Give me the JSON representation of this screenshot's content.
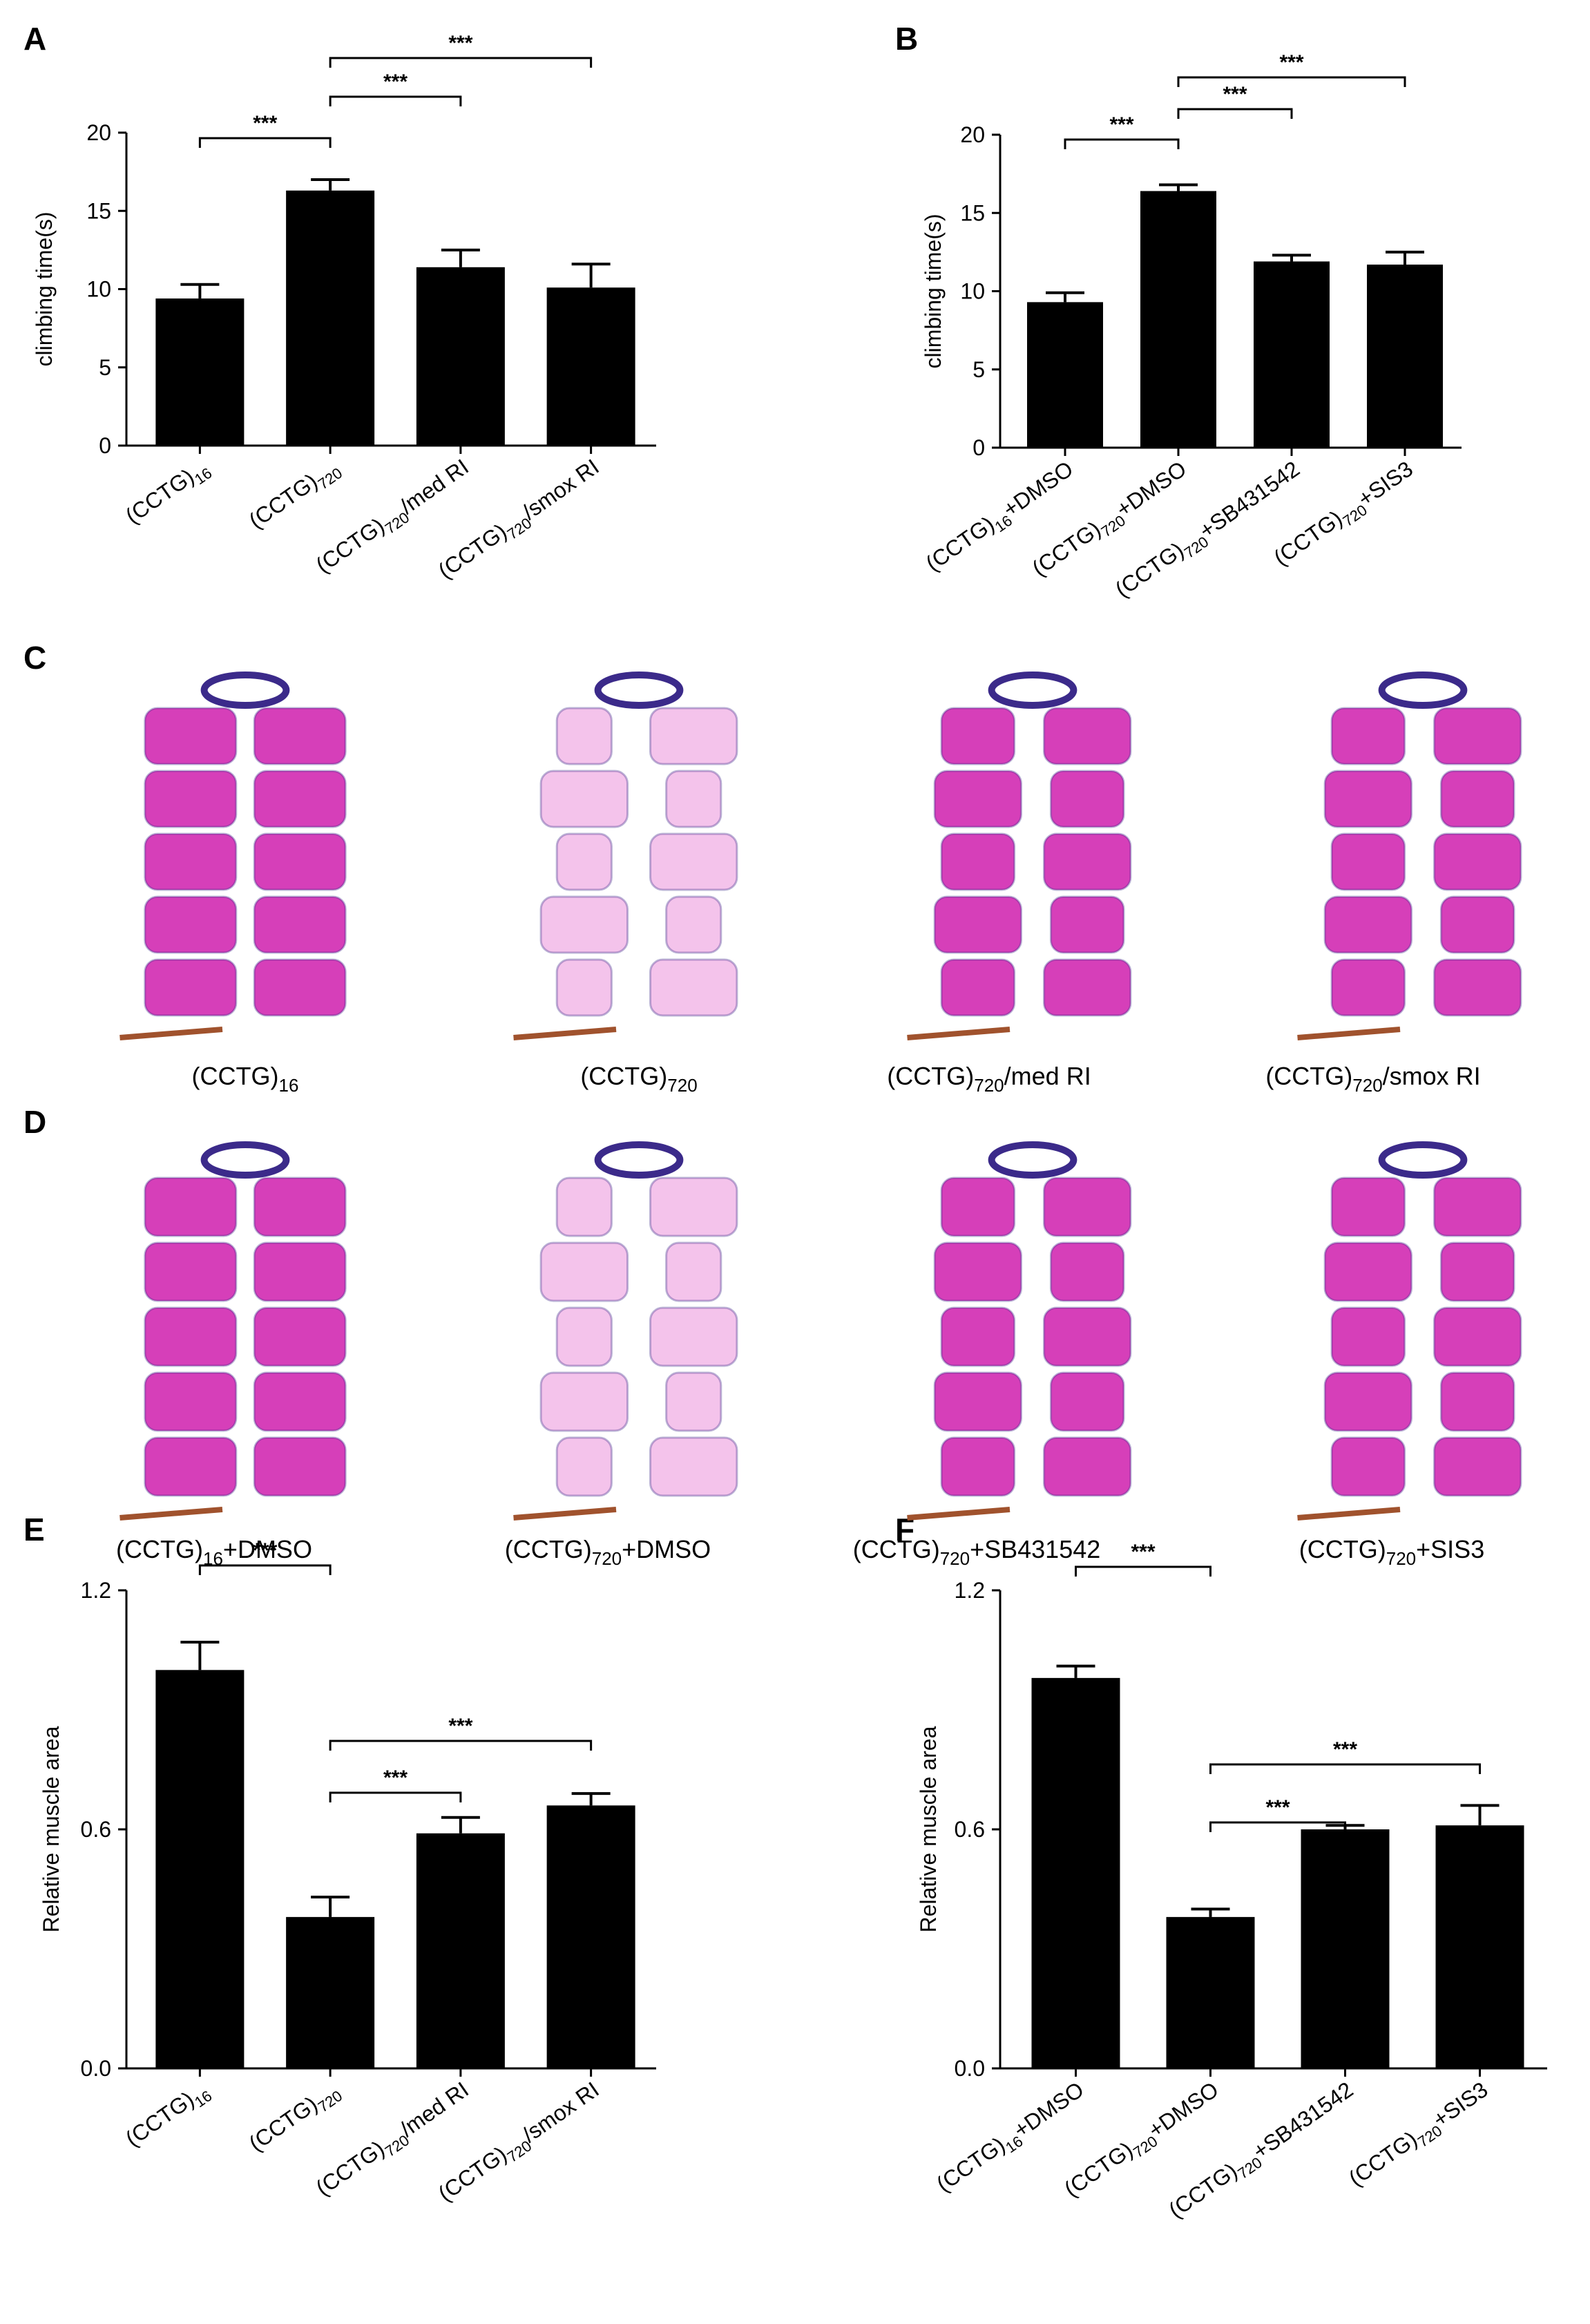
{
  "panels": {
    "A": "A",
    "B": "B",
    "C": "C",
    "D": "D",
    "E": "E",
    "F": "F"
  },
  "chart_data": [
    {
      "panel": "A",
      "type": "bar",
      "ylabel": "climbing time(s)",
      "ylim": [
        0,
        20
      ],
      "yticks": [
        "0",
        "5",
        "10",
        "15",
        "20"
      ],
      "categories": [
        {
          "main": "(CCTG)",
          "sub": "16",
          "tail": ""
        },
        {
          "main": "(CCTG)",
          "sub": "720",
          "tail": ""
        },
        {
          "main": "(CCTG)",
          "sub": "720",
          "tail": "/med RI"
        },
        {
          "main": "(CCTG)",
          "sub": "720",
          "tail": "/smox RI"
        }
      ],
      "values": [
        9.4,
        16.3,
        11.4,
        10.1
      ],
      "errors": [
        0.9,
        0.7,
        1.1,
        1.5
      ],
      "color": "#000000",
      "significance": [
        {
          "from": 0,
          "to": 1,
          "label": "***"
        },
        {
          "from": 1,
          "to": 2,
          "label": "***"
        },
        {
          "from": 1,
          "to": 3,
          "label": "***"
        }
      ]
    },
    {
      "panel": "B",
      "type": "bar",
      "ylabel": "climbing time(s)",
      "ylim": [
        0,
        20
      ],
      "yticks": [
        "0",
        "5",
        "10",
        "15",
        "20"
      ],
      "categories": [
        {
          "main": "(CCTG)",
          "sub": "16",
          "tail": "+DMSO"
        },
        {
          "main": "(CCTG)",
          "sub": "720",
          "tail": "+DMSO"
        },
        {
          "main": "(CCTG)",
          "sub": "720",
          "tail": "+SB431542"
        },
        {
          "main": "(CCTG)",
          "sub": "720",
          "tail": "+SIS3"
        }
      ],
      "values": [
        9.3,
        16.4,
        11.9,
        11.7
      ],
      "errors": [
        0.6,
        0.4,
        0.4,
        0.8
      ],
      "color": "#000000",
      "significance": [
        {
          "from": 0,
          "to": 1,
          "label": "***"
        },
        {
          "from": 1,
          "to": 2,
          "label": "***"
        },
        {
          "from": 1,
          "to": 3,
          "label": "***"
        }
      ]
    },
    {
      "panel": "E",
      "type": "bar",
      "ylabel": "Relative muscle area",
      "ylim": [
        0,
        1.2
      ],
      "yticks": [
        "0.0",
        "0.6",
        "1.2"
      ],
      "categories": [
        {
          "main": "(CCTG)",
          "sub": "16",
          "tail": ""
        },
        {
          "main": "(CCTG)",
          "sub": "720",
          "tail": ""
        },
        {
          "main": "(CCTG)",
          "sub": "720",
          "tail": "/med RI"
        },
        {
          "main": "(CCTG)",
          "sub": "720",
          "tail": "/smox RI"
        }
      ],
      "values": [
        1.0,
        0.38,
        0.59,
        0.66
      ],
      "errors": [
        0.07,
        0.05,
        0.04,
        0.03
      ],
      "color": "#000000",
      "significance": [
        {
          "from": 0,
          "to": 1,
          "label": "***"
        },
        {
          "from": 1,
          "to": 2,
          "label": "***"
        },
        {
          "from": 1,
          "to": 3,
          "label": "***"
        }
      ]
    },
    {
      "panel": "F",
      "type": "bar",
      "ylabel": "Relative muscle area",
      "ylim": [
        0,
        1.2
      ],
      "yticks": [
        "0.0",
        "0.6",
        "1.2"
      ],
      "categories": [
        {
          "main": "(CCTG)",
          "sub": "16",
          "tail": "+DMSO"
        },
        {
          "main": "(CCTG)",
          "sub": "720",
          "tail": "+DMSO"
        },
        {
          "main": "(CCTG)",
          "sub": "720",
          "tail": "+SB431542"
        },
        {
          "main": "(CCTG)",
          "sub": "720",
          "tail": "+SIS3"
        }
      ],
      "values": [
        0.98,
        0.38,
        0.6,
        0.61
      ],
      "errors": [
        0.03,
        0.02,
        0.01,
        0.05
      ],
      "color": "#000000",
      "significance": [
        {
          "from": 0,
          "to": 1,
          "label": "***"
        },
        {
          "from": 1,
          "to": 2,
          "label": "***"
        },
        {
          "from": 1,
          "to": 3,
          "label": "***"
        }
      ]
    }
  ],
  "images": {
    "C": [
      {
        "main": "(CCTG)",
        "sub": "16",
        "tail": "",
        "pattern": "intact"
      },
      {
        "main": "(CCTG)",
        "sub": "720",
        "tail": "",
        "pattern": "degenerated"
      },
      {
        "main": "(CCTG)",
        "sub": "720",
        "tail": "/med RI",
        "pattern": "partial"
      },
      {
        "main": "(CCTG)",
        "sub": "720",
        "tail": "/smox RI",
        "pattern": "partial"
      }
    ],
    "D": [
      {
        "main": "(CCTG)",
        "sub": "16",
        "tail": "+DMSO",
        "pattern": "intact"
      },
      {
        "main": "(CCTG)",
        "sub": "720",
        "tail": "+DMSO",
        "pattern": "degenerated"
      },
      {
        "main": "(CCTG)",
        "sub": "720",
        "tail": "+SB431542",
        "pattern": "partial"
      },
      {
        "main": "(CCTG)",
        "sub": "720",
        "tail": "+SIS3",
        "pattern": "partial"
      }
    ],
    "stain_colors": {
      "muscle": "#d63fb9",
      "muscle_light": "#f2b8e8",
      "cuticle": "#3b2a8a",
      "debris": "#a0522d"
    }
  }
}
